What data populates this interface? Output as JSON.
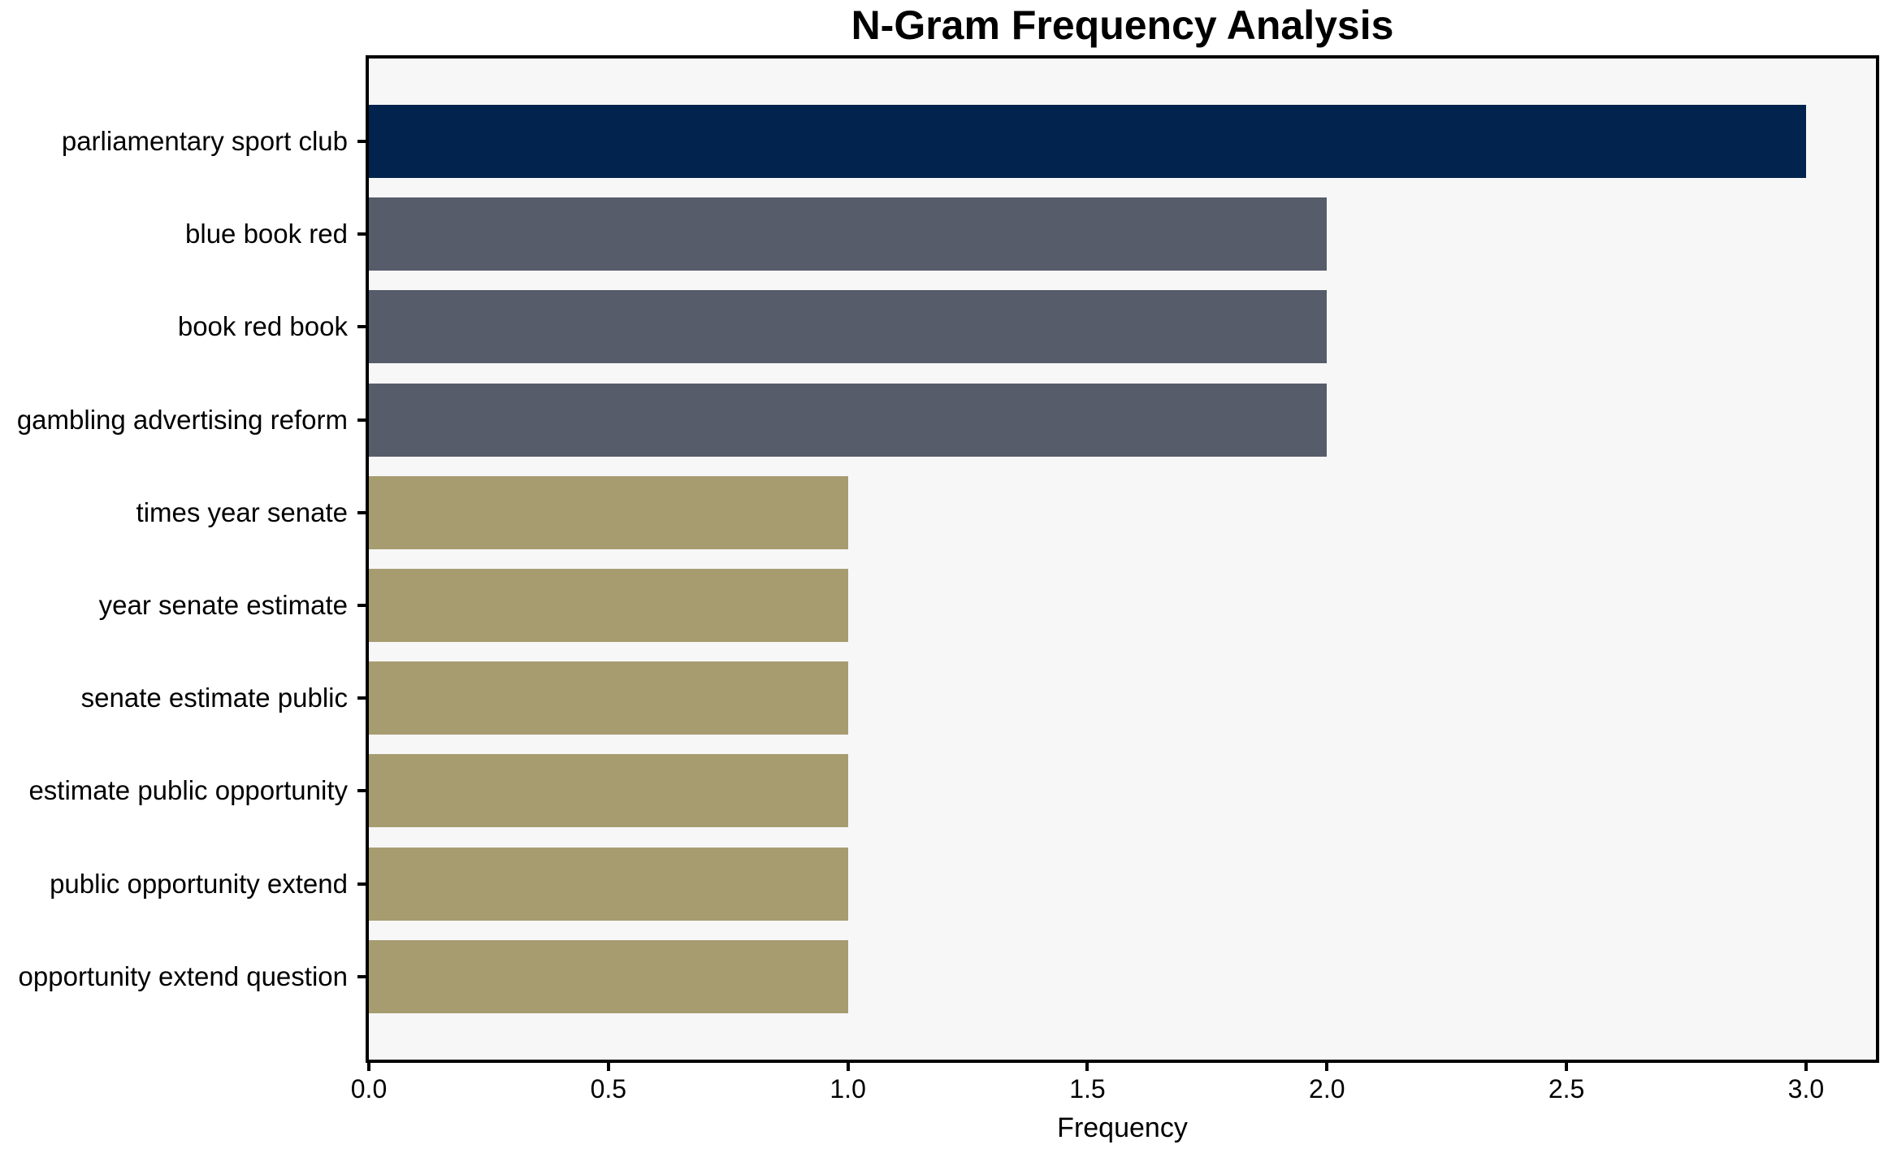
{
  "chart_data": {
    "type": "bar",
    "orientation": "horizontal",
    "title": "N-Gram Frequency Analysis",
    "xlabel": "Frequency",
    "ylabel": "",
    "categories": [
      "parliamentary sport club",
      "blue book red",
      "book red book",
      "gambling advertising reform",
      "times year senate",
      "year senate estimate",
      "senate estimate public",
      "estimate public opportunity",
      "public opportunity extend",
      "opportunity extend question"
    ],
    "values": [
      3,
      2,
      2,
      2,
      1,
      1,
      1,
      1,
      1,
      1
    ],
    "bar_colors": [
      "#02234D",
      "#575C6B",
      "#575C6B",
      "#575C6B",
      "#A69C70",
      "#A69C70",
      "#A69C70",
      "#A69C70",
      "#A69C70",
      "#A69C70"
    ],
    "xtick_labels": [
      "0.0",
      "0.5",
      "1.0",
      "1.5",
      "2.0",
      "2.5",
      "3.0"
    ],
    "xtick_values": [
      0,
      0.5,
      1,
      1.5,
      2,
      2.5,
      3
    ],
    "xlim": [
      0,
      3.146
    ],
    "grid": false,
    "legend": null,
    "plot_background": "#F7F7F7",
    "axis_color": "#000000",
    "text_color": "#000000"
  }
}
